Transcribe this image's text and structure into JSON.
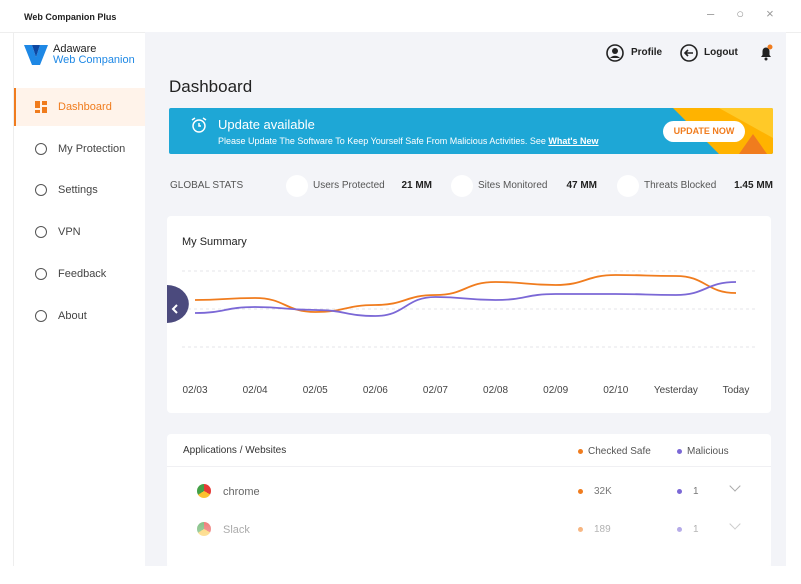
{
  "window": {
    "title": "Web Companion Plus"
  },
  "brand": {
    "line1": "Adaware",
    "line2": "Web Companion"
  },
  "nav": [
    {
      "label": "Dashboard",
      "active": true
    },
    {
      "label": "My Protection"
    },
    {
      "label": "Settings"
    },
    {
      "label": "VPN"
    },
    {
      "label": "Feedback"
    },
    {
      "label": "About"
    }
  ],
  "header": {
    "profile": "Profile",
    "logout": "Logout"
  },
  "page_title": "Dashboard",
  "banner": {
    "title": "Update available",
    "text": "Please Update The Software To Keep Yourself Safe From Malicious Activities. See",
    "link": "What's New",
    "button": "UPDATE NOW"
  },
  "stats": {
    "label": "GLOBAL STATS",
    "items": [
      {
        "name": "Users Protected",
        "value": "21 MM"
      },
      {
        "name": "Sites Monitored",
        "value": "47 MM"
      },
      {
        "name": "Threats Blocked",
        "value": "1.45 MM"
      }
    ]
  },
  "chart_data": {
    "type": "line",
    "title": "My Summary",
    "categories": [
      "02/03",
      "02/04",
      "02/05",
      "02/06",
      "02/07",
      "02/08",
      "02/09",
      "02/10",
      "Yesterday",
      "Today"
    ],
    "series": [
      {
        "color": "#f07c1e",
        "values": [
          62,
          64,
          50,
          57,
          67,
          80,
          77,
          87,
          86,
          69
        ]
      },
      {
        "color": "#7b68d6",
        "values": [
          49,
          55,
          52,
          46,
          65,
          62,
          68,
          68,
          67,
          80
        ]
      }
    ],
    "ylim": [
      0,
      100
    ]
  },
  "apps": {
    "title": "Applications / Websites",
    "columns": [
      {
        "name": "Checked Safe",
        "color": "#f07c1e"
      },
      {
        "name": "Malicious",
        "color": "#7b68d6"
      }
    ],
    "rows": [
      {
        "name": "chrome",
        "safe": "32K",
        "malicious": "1"
      },
      {
        "name": "Slack",
        "safe": "189",
        "malicious": "1"
      }
    ]
  }
}
